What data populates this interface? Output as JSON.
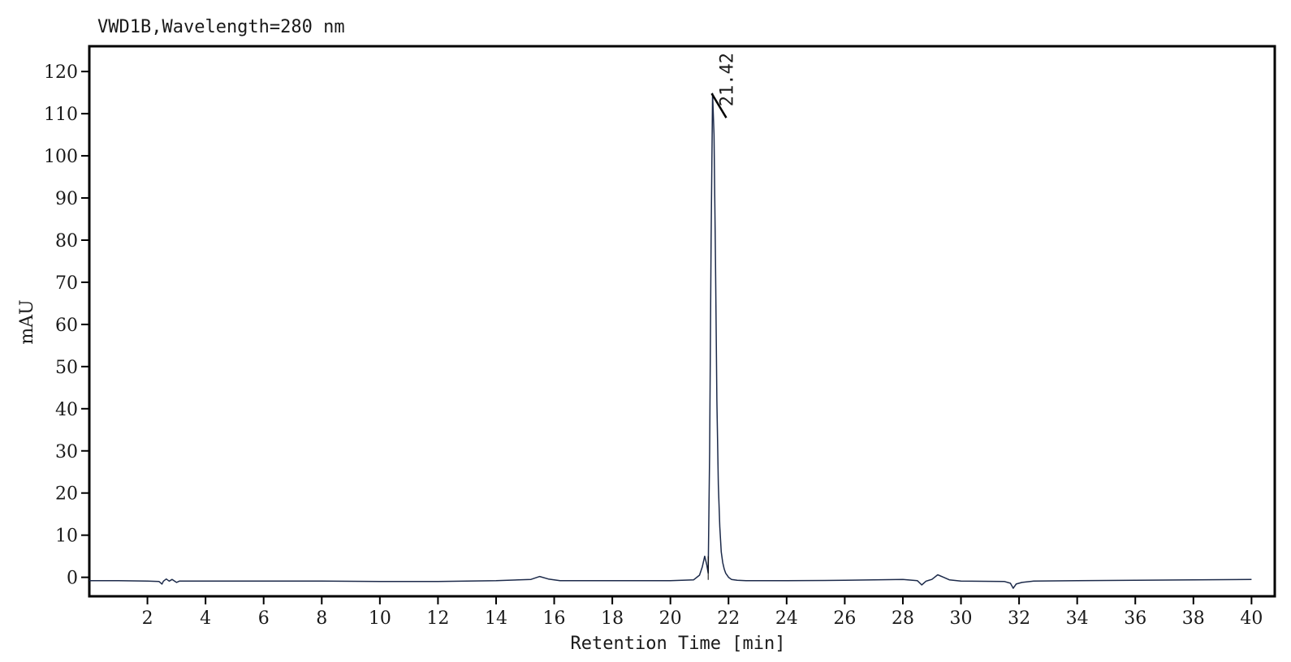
{
  "chart_data": {
    "type": "line",
    "title": "VWD1B,Wavelength=280 nm",
    "xlabel": "Retention Time [min]",
    "ylabel": "mAU",
    "xlim": [
      0,
      40.8
    ],
    "ylim": [
      -4.5,
      126
    ],
    "x_ticks": [
      2,
      4,
      6,
      8,
      10,
      12,
      14,
      16,
      18,
      20,
      22,
      24,
      26,
      28,
      30,
      32,
      34,
      36,
      38,
      40
    ],
    "y_ticks": [
      0,
      10,
      20,
      30,
      40,
      50,
      60,
      70,
      80,
      90,
      100,
      110,
      120
    ],
    "grid": false,
    "legend": "none",
    "series": [
      {
        "color": "#1c2a4a",
        "x": [
          0.0,
          1.0,
          2.0,
          2.4,
          2.5,
          2.55,
          2.65,
          2.75,
          2.85,
          3.0,
          3.1,
          4.0,
          6.0,
          8.0,
          10.0,
          12.0,
          14.0,
          15.2,
          15.5,
          15.8,
          16.2,
          18.0,
          20.0,
          20.8,
          21.0,
          21.1,
          21.18,
          21.25,
          21.3,
          21.35,
          21.4,
          21.45,
          21.5,
          21.55,
          21.6,
          21.65,
          21.7,
          21.75,
          21.8,
          21.85,
          21.9,
          22.0,
          22.1,
          22.3,
          22.6,
          24.0,
          26.0,
          28.0,
          28.5,
          28.65,
          28.8,
          29.0,
          29.2,
          29.4,
          29.6,
          30.0,
          31.5,
          31.7,
          31.8,
          31.9,
          32.1,
          32.5,
          34.0,
          36.0,
          38.0,
          40.0
        ],
        "y": [
          -0.8,
          -0.8,
          -0.9,
          -1.0,
          -1.6,
          -0.9,
          -0.4,
          -0.9,
          -0.5,
          -1.2,
          -0.9,
          -0.9,
          -0.9,
          -0.9,
          -1.0,
          -1.0,
          -0.8,
          -0.5,
          0.2,
          -0.4,
          -0.8,
          -0.8,
          -0.8,
          -0.6,
          0.5,
          2.5,
          5.0,
          3.0,
          1.0,
          30.0,
          80.0,
          114.8,
          105.0,
          75.0,
          42.0,
          22.0,
          12.0,
          6.0,
          3.5,
          2.0,
          1.0,
          0.0,
          -0.5,
          -0.7,
          -0.8,
          -0.8,
          -0.7,
          -0.5,
          -0.8,
          -1.8,
          -0.9,
          -0.5,
          0.6,
          0.0,
          -0.6,
          -0.9,
          -1.0,
          -1.4,
          -2.6,
          -1.6,
          -1.2,
          -0.9,
          -0.8,
          -0.7,
          -0.6,
          -0.5
        ]
      }
    ],
    "annotations": [
      {
        "text": "21.42",
        "x": 21.42,
        "y": 114.8
      }
    ]
  }
}
